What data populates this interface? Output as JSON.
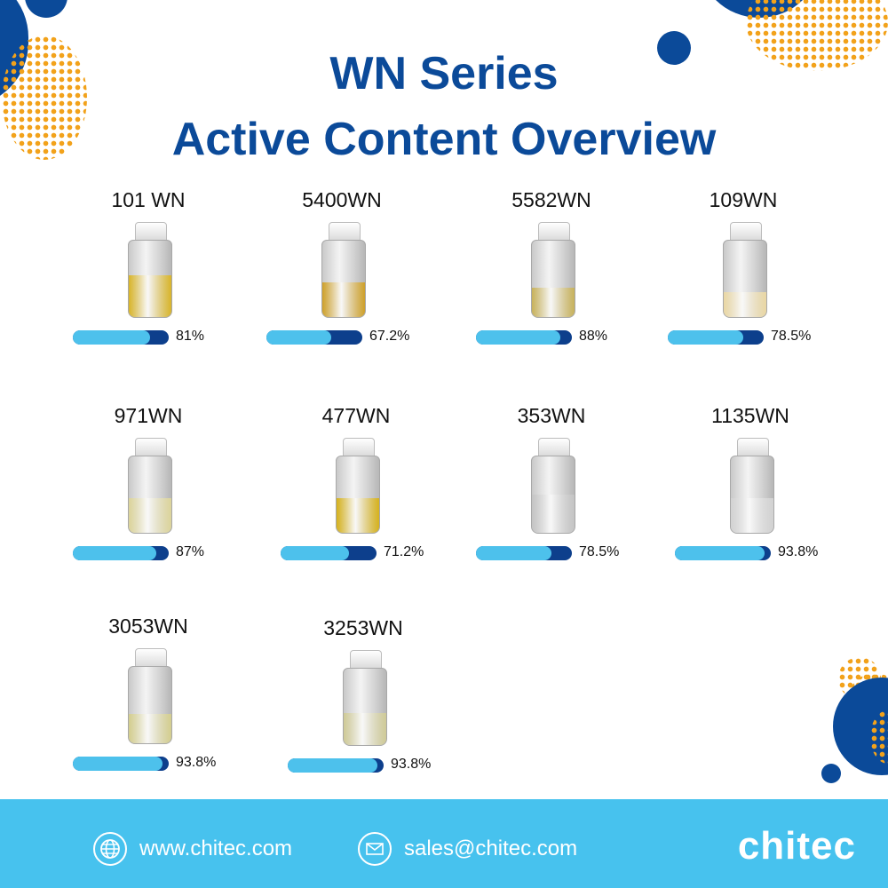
{
  "title_line1": "WN Series",
  "title_line2": "Active Content Overview",
  "products": [
    {
      "name": "101 WN",
      "percent_label": "81%",
      "content_fraction": 0.81,
      "liquid_color": "#d9b52a",
      "liquid_fill": 0.55
    },
    {
      "name": "5400WN",
      "percent_label": "67.2%",
      "content_fraction": 0.672,
      "liquid_color": "#cfa12a",
      "liquid_fill": 0.45
    },
    {
      "name": "5582WN",
      "percent_label": "88%",
      "content_fraction": 0.88,
      "liquid_color": "#c8b25a",
      "liquid_fill": 0.38
    },
    {
      "name": "109WN",
      "percent_label": "78.5%",
      "content_fraction": 0.785,
      "liquid_color": "#ead7a3",
      "liquid_fill": 0.32
    },
    {
      "name": "971WN",
      "percent_label": "87%",
      "content_fraction": 0.87,
      "liquid_color": "#dcd49a",
      "liquid_fill": 0.45
    },
    {
      "name": "477WN",
      "percent_label": "71.2%",
      "content_fraction": 0.712,
      "liquid_color": "#d6b21c",
      "liquid_fill": 0.45
    },
    {
      "name": "353WN",
      "percent_label": "78.5%",
      "content_fraction": 0.785,
      "liquid_color": "#c4c4c4",
      "liquid_fill": 0.5
    },
    {
      "name": "1135WN",
      "percent_label": "93.8%",
      "content_fraction": 0.938,
      "liquid_color": "#d2d2d2",
      "liquid_fill": 0.45
    },
    {
      "name": "3053WN",
      "percent_label": "93.8%",
      "content_fraction": 0.938,
      "liquid_color": "#d4ce8e",
      "liquid_fill": 0.38
    },
    {
      "name": "3253WN",
      "percent_label": "93.8%",
      "content_fraction": 0.938,
      "liquid_color": "#cfca96",
      "liquid_fill": 0.42
    }
  ],
  "footer": {
    "website": "www.chitec.com",
    "email": "sales@chitec.com",
    "logo": "chitec",
    "website_icon": "globe-icon",
    "email_icon": "envelope-icon"
  },
  "colors": {
    "brand_navy": "#0b4a99",
    "bar_fill": "#4dc1ec",
    "bar_track": "#0d3f8c",
    "footer_bg": "#47c2ee",
    "dots_orange": "#f2a21b"
  }
}
